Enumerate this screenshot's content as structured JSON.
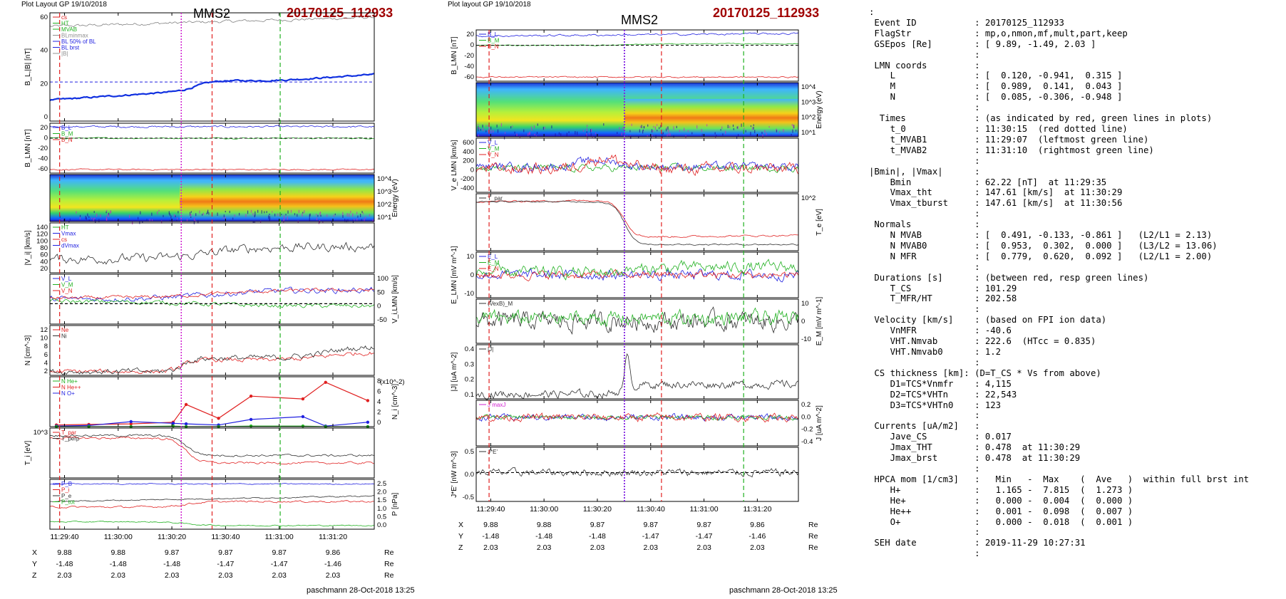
{
  "left": {
    "header": "Plot Layout GP 19/10/2018",
    "spacecraft": "MMS2",
    "event": "20170125_112933",
    "footer": "paschmann 28-Oct-2018 13:25",
    "time_ticks": [
      "11:29:40",
      "11:30:00",
      "11:30:20",
      "11:30:40",
      "11:31:00",
      "11:31:20"
    ],
    "pos_rows": [
      {
        "label": "X",
        "values": [
          "9.88",
          "9.88",
          "9.87",
          "9.87",
          "9.87",
          "9.86"
        ],
        "unit": "Re"
      },
      {
        "label": "Y",
        "values": [
          "-1.48",
          "-1.48",
          "-1.48",
          "-1.47",
          "-1.47",
          "-1.46"
        ],
        "unit": "Re"
      },
      {
        "label": "Z",
        "values": [
          "2.03",
          "2.03",
          "2.03",
          "2.03",
          "2.03",
          "2.03"
        ],
        "unit": "Re"
      }
    ]
  },
  "middle": {
    "header": "Plot layout GP 19/10/2018",
    "spacecraft": "MMS2",
    "event": "20170125_112933",
    "footer": "paschmann 28-Oct-2018 13:25",
    "time_ticks": [
      "11:29:40",
      "11:30:00",
      "11:30:20",
      "11:30:40",
      "11:31:00",
      "11:31:20"
    ],
    "pos_rows": [
      {
        "label": "X",
        "values": [
          "9.88",
          "9.88",
          "9.87",
          "9.87",
          "9.87",
          "9.86"
        ],
        "unit": "Re"
      },
      {
        "label": "Y",
        "values": [
          "-1.48",
          "-1.48",
          "-1.48",
          "-1.47",
          "-1.47",
          "-1.46"
        ],
        "unit": "Re"
      },
      {
        "label": "Z",
        "values": [
          "2.03",
          "2.03",
          "2.03",
          "2.03",
          "2.03",
          "2.03"
        ],
        "unit": "Re"
      }
    ]
  },
  "right_lines": [
    ":",
    " Event ID           : 20170125_112933",
    " FlagStr            : mp,o,nmon,mf,mult,part,keep",
    " GSEpos [Re]        : [ 9.89, -1.49, 2.03 ]",
    "                    :",
    " LMN coords         :",
    "    L               : [  0.120, -0.941,  0.315 ]",
    "    M               : [  0.989,  0.141,  0.043 ]",
    "    N               : [  0.085, -0.306, -0.948 ]",
    "                    :",
    "  Times             : (as indicated by red, green lines in plots)",
    "    t_0             : 11:30:15  (red dotted line)",
    "    t_MVAB1         : 11:29:07  (leftmost green line)",
    "    t_MVAB2         : 11:31:10  (rightmost green line)",
    "                    :",
    "|Bmin|, |Vmax|      :",
    "    Bmin            : 62.22 [nT]  at 11:29:35",
    "    Vmax_tht        : 147.61 [km/s]  at 11:30:29",
    "    Vmax_tburst     : 147.61 [km/s]  at 11:30:56",
    "                    :",
    " Normals            :",
    "    N MVAB          : [  0.491, -0.133, -0.861 ]   (L2/L1 = 2.13)",
    "    N MVAB0         : [  0.953,  0.302,  0.000 ]   (L3/L2 = 13.06)",
    "    N MFR           : [  0.779,  0.620,  0.092 ]   (L2/L1 = 2.00)",
    "                    :",
    " Durations [s]      : (between red, resp green lines)",
    "    T_CS            : 101.29",
    "    T_MFR/HT        : 202.58",
    "                    :",
    " Velocity [km/s]    : (based on FPI ion data)",
    "    VnMFR           : -40.6",
    "    VHT.Nmvab       : 222.6  (HTcc = 0.835)",
    "    VHT.Nmvab0      : 1.2",
    "                    :",
    " CS thickness [km]: (D=T_CS * Vs from above)",
    "    D1=TCS*Vnmfr    : 4,115",
    "    D2=TCS*VHTn     : 22,543",
    "    D3=TCS*VHTn0    : 123",
    "                    :",
    " Currents [uA/m2]   :",
    "    Jave_CS         : 0.017",
    "    Jmax_THT        : 0.478  at 11:30:29",
    "    Jmax_brst       : 0.478  at 11:30:29",
    "                    :",
    " HPCA mom [1/cm3]   :   Min   -  Max    (  Ave   )  within full brst int",
    "    H+              :   1.165 -  7.815  (  1.273 )",
    "    He+             :   0.000 -  0.004  (  0.000 )",
    "    He++            :   0.001 -  0.098  (  0.007 )",
    "    O+              :   0.000 -  0.018  (  0.001 )",
    "                    :",
    " SEH date           : 2019-11-29 10:27:31",
    "                    :"
  ],
  "chart_data": [
    {
      "type": "line",
      "panel": "left-1",
      "ylabel": "B_L,|B| [nT]",
      "ylim": [
        0,
        70
      ],
      "yticks": [
        "60",
        "40",
        "20",
        "0"
      ],
      "legend": [
        "cs",
        "HT",
        "MVAB",
        "BLminmax",
        "BL 50% of BL",
        "BL brst",
        "|B|"
      ],
      "series": [
        {
          "name": "|B|",
          "values": [
            63,
            64,
            66,
            67,
            67,
            68,
            68,
            67,
            68,
            69,
            69
          ]
        },
        {
          "name": "BL brst",
          "values": [
            14,
            16,
            19,
            22,
            25,
            26,
            32,
            30,
            28,
            28,
            30
          ]
        }
      ]
    },
    {
      "type": "line",
      "panel": "left-2",
      "ylabel": "B_LMN [nT]",
      "ylim": [
        -70,
        30
      ],
      "yticks": [
        "20",
        "0",
        "-20",
        "-40",
        "-60"
      ],
      "legend": [
        "B_L",
        "B_M",
        "B_N"
      ]
    },
    {
      "type": "heatmap",
      "panel": "left-3",
      "ylabel": "Energy (eV)",
      "yticks": [
        "10^4",
        "10^3",
        "10^2",
        "10^1"
      ]
    },
    {
      "type": "line",
      "panel": "left-4",
      "ylabel": "|V_i| [km/s]",
      "ylim": [
        20,
        140
      ],
      "yticks": [
        "140",
        "120",
        "100",
        "80",
        "60",
        "40",
        "20"
      ],
      "legend": [
        "HT",
        "Vmax",
        "cs",
        "dVmax"
      ]
    },
    {
      "type": "line",
      "panel": "left-5",
      "ylabel": "V_i,LMN [km/s]",
      "yticks": [
        "100",
        "50",
        "0",
        "-50"
      ],
      "legend": [
        "V_L",
        "V_M",
        "V_N"
      ]
    },
    {
      "type": "line",
      "panel": "left-6",
      "ylabel": "N [cm^-3]",
      "ylim": [
        1,
        13
      ],
      "yticks": [
        "12",
        "10",
        "8",
        "6",
        "4",
        "2"
      ],
      "legend": [
        "Ne",
        "Ni"
      ]
    },
    {
      "type": "line",
      "panel": "left-7",
      "ylabel": "N_i [cm^-3]",
      "yscale_note": "(x10^-2)",
      "ylim": [
        0,
        9
      ],
      "yticks": [
        "8",
        "6",
        "4",
        "2",
        "0"
      ],
      "legend": [
        "N He+",
        "N He++",
        "N O+"
      ],
      "series": [
        {
          "name": "N He++",
          "x": [
            0,
            1,
            2,
            3,
            4,
            5,
            6,
            7,
            8,
            9
          ],
          "values": [
            0.3,
            0.4,
            0.5,
            0.8,
            4,
            1.5,
            5.5,
            5,
            8,
            4.7
          ]
        },
        {
          "name": "N O+",
          "x": [
            0,
            1,
            2,
            3,
            4,
            5,
            6,
            7,
            8,
            9
          ],
          "values": [
            0.1,
            0.2,
            0.9,
            0.6,
            0.5,
            0.3,
            1.3,
            1.8,
            0.1,
            0.8
          ]
        },
        {
          "name": "N He+",
          "x": [
            0,
            1,
            2,
            3,
            4,
            5,
            6,
            7,
            8,
            9
          ],
          "values": [
            0,
            0,
            0,
            0.1,
            0,
            0,
            0.1,
            0.1,
            0,
            0
          ]
        }
      ]
    },
    {
      "type": "line",
      "panel": "left-8",
      "ylabel": "T_i [eV]",
      "yticks": [
        "10^3"
      ],
      "legend": [
        "T_par",
        "T_perp"
      ]
    },
    {
      "type": "line",
      "panel": "left-9",
      "ylabel": "P [nPa]",
      "ylim": [
        0,
        2.6
      ],
      "yticks": [
        "2.5",
        "2.0",
        "1.5",
        "1.0",
        "0.5",
        "0.0"
      ],
      "legend": [
        "P_B",
        "P_i",
        "P_e",
        "P_tot"
      ]
    },
    {
      "type": "line",
      "panel": "mid-1",
      "ylabel": "B_LMN [nT]",
      "ylim": [
        -70,
        30
      ],
      "yticks": [
        "20",
        "0",
        "-20",
        "-40",
        "-60"
      ],
      "legend": [
        "B_L",
        "B_M",
        "B_N"
      ]
    },
    {
      "type": "heatmap",
      "panel": "mid-2",
      "ylabel": "Energy (eV)",
      "yticks": [
        "10^4",
        "10^3",
        "10^2",
        "10^1"
      ]
    },
    {
      "type": "line",
      "panel": "mid-3",
      "ylabel": "V_e LMN [km/s]",
      "ylim": [
        -500,
        700
      ],
      "yticks": [
        "600",
        "400",
        "200",
        "0",
        "-200",
        "-400"
      ],
      "legend": [
        "V_L",
        "V_M",
        "V_N"
      ]
    },
    {
      "type": "line",
      "panel": "mid-4",
      "ylabel": "T_e [eV]",
      "yticks": [
        "10^2"
      ],
      "legend": [
        "T_par"
      ]
    },
    {
      "type": "line",
      "panel": "mid-5",
      "ylabel": "E_LMN [mV m^-1]",
      "yticks": [
        "10",
        "0",
        "-10"
      ],
      "legend": [
        "E_L",
        "E_M",
        "E_N"
      ]
    },
    {
      "type": "line",
      "panel": "mid-6",
      "ylabel": "E_M [mV m^-1]",
      "yticks": [
        "10",
        "0",
        "-10"
      ],
      "legend": [
        "(VexB)_M"
      ]
    },
    {
      "type": "line",
      "panel": "mid-7",
      "ylabel": "|J| [uA m^-2]",
      "ylim": [
        0,
        0.45
      ],
      "yticks": [
        "0.4",
        "0.3",
        "0.2",
        "0.1"
      ],
      "legend": [
        "|J|"
      ]
    },
    {
      "type": "line",
      "panel": "mid-8",
      "ylabel": "J [uA m^-2]",
      "yticks": [
        "0.2",
        "0.0",
        "-0.2",
        "-0.4"
      ],
      "legend": [
        "J maxJ"
      ]
    },
    {
      "type": "line",
      "panel": "mid-9",
      "ylabel": "J*E' [nW m^-3]",
      "yticks": [
        "0.5",
        "0.0",
        "-0.5"
      ],
      "legend": [
        "J*E'"
      ]
    }
  ]
}
